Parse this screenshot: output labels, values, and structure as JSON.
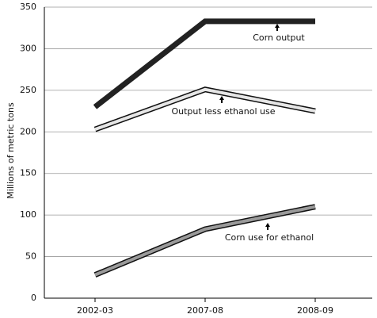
{
  "chart_data": {
    "type": "line",
    "y_label": "Millions of metric tons",
    "categories": [
      "2002-03",
      "2007-08",
      "2008-09"
    ],
    "series": [
      {
        "name": "Corn output",
        "color": "#222222",
        "outline": "#222222",
        "values": [
          230,
          333,
          333
        ]
      },
      {
        "name": "Output less ethanol use",
        "color": "#e6e6e6",
        "outline": "#111111",
        "values": [
          203,
          251,
          225
        ]
      },
      {
        "name": "Corn use for ethanol",
        "color": "#9a9a9a",
        "outline": "#111111",
        "values": [
          28,
          83,
          110
        ]
      }
    ],
    "ylim": [
      0,
      350
    ],
    "yticks": [
      0,
      50,
      100,
      150,
      200,
      250,
      300,
      350
    ],
    "grid": true
  }
}
